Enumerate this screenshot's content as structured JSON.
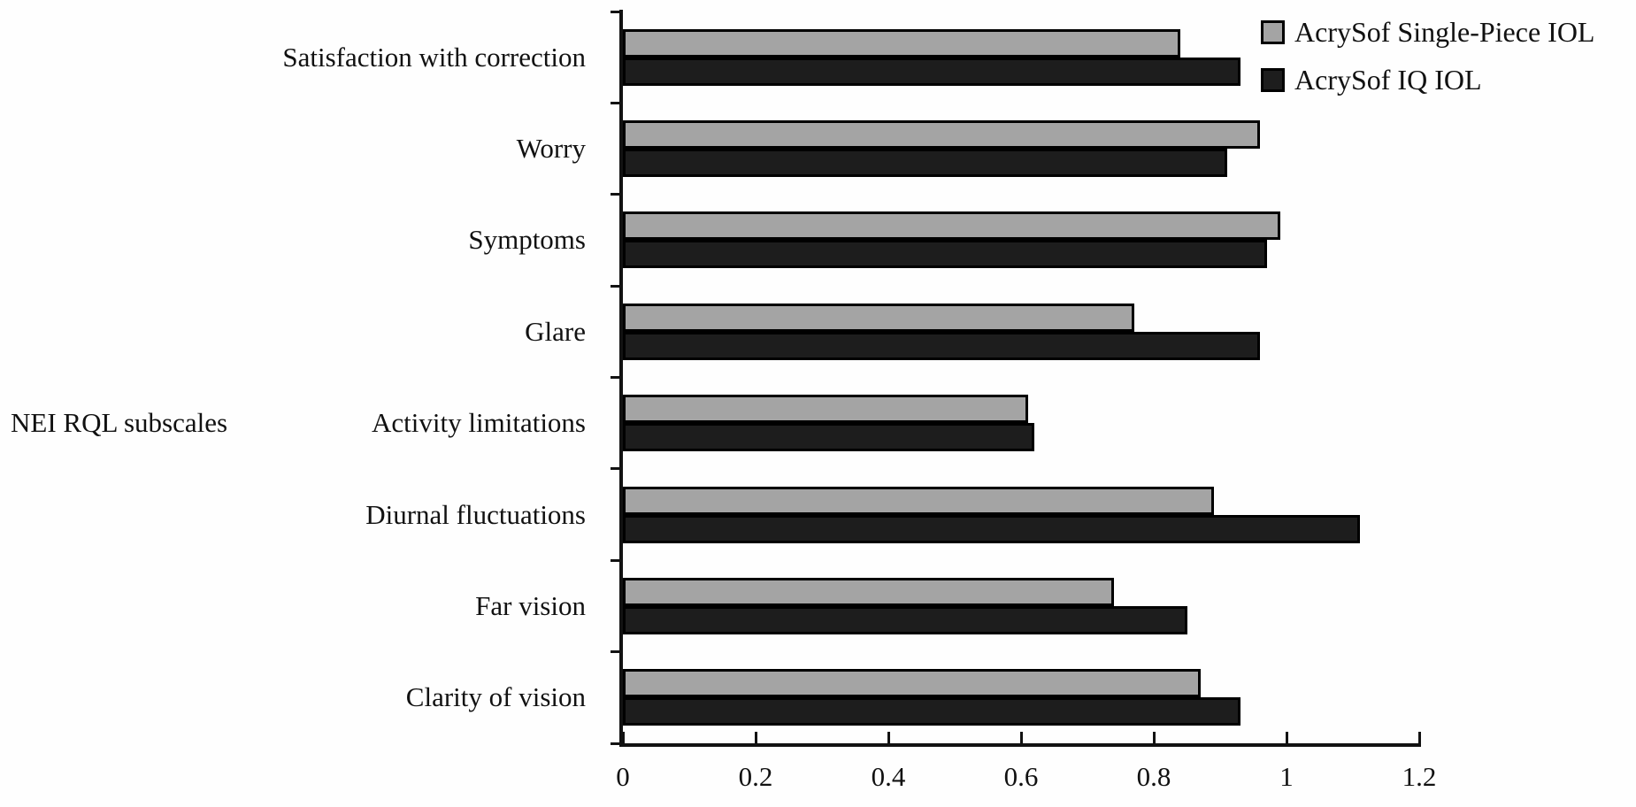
{
  "chart_data": {
    "type": "bar",
    "orientation": "horizontal",
    "axis_label": "NEI RQL subscales",
    "categories": [
      "Satisfaction with correction",
      "Worry",
      "Symptoms",
      "Glare",
      "Activity limitations",
      "Diurnal fluctuations",
      "Far vision",
      "Clarity of vision"
    ],
    "series": [
      {
        "name": "AcrySof Single-Piece IOL",
        "color": "#a4a4a4",
        "values": [
          0.84,
          0.96,
          0.99,
          0.77,
          0.61,
          0.89,
          0.74,
          0.87
        ]
      },
      {
        "name": "AcrySof IQ IOL",
        "color": "#1d1d1d",
        "values": [
          0.93,
          0.91,
          0.97,
          0.96,
          0.62,
          1.11,
          0.85,
          0.93
        ]
      }
    ],
    "xlim": [
      0,
      1.2
    ],
    "xticks": [
      0,
      0.2,
      0.4,
      0.6,
      0.8,
      1,
      1.2
    ],
    "xtick_labels": [
      "0",
      "0.2",
      "0.4",
      "0.6",
      "0.8",
      "1",
      "1.2"
    ],
    "legend_position": "top-right",
    "grid": false,
    "axis_color": "#121212",
    "text_color": "#111111",
    "background": "#fefefe"
  }
}
